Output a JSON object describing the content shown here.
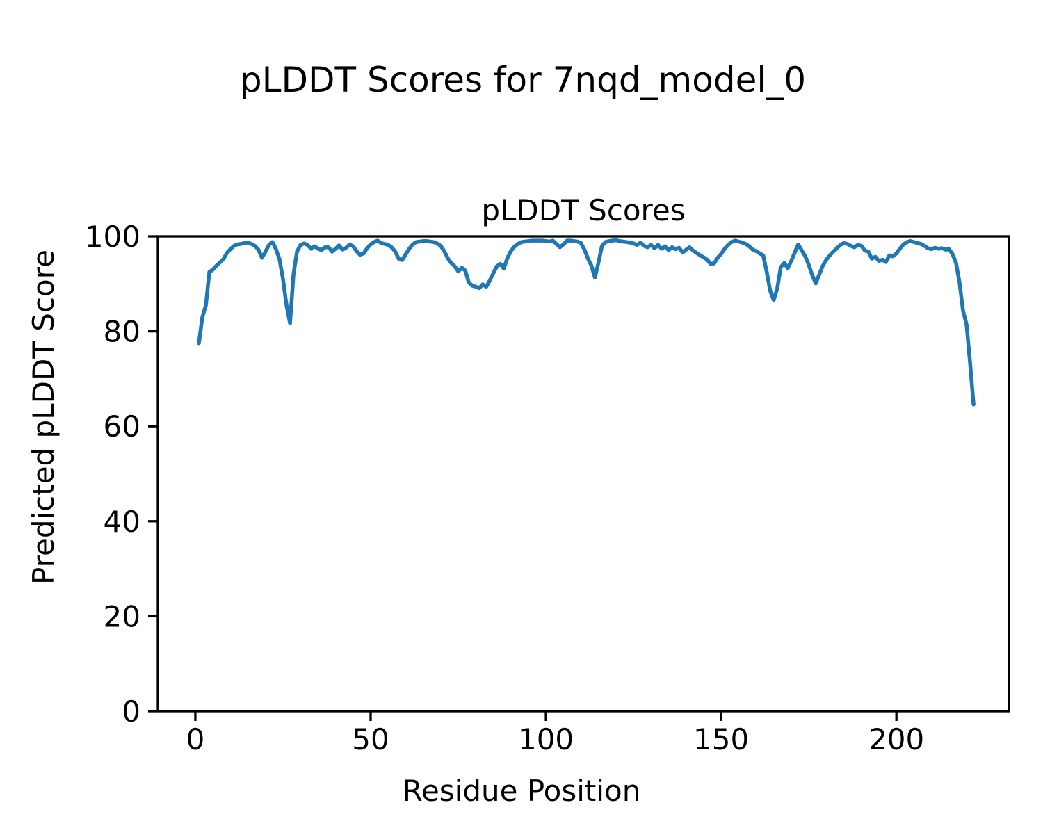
{
  "chart_data": {
    "type": "line",
    "figure_title": "pLDDT Scores for 7nqd_model_0",
    "axes_title": "pLDDT Scores",
    "xlabel": "Residue Position",
    "ylabel": "Predicted pLDDT Score",
    "xlim": [
      -10.7,
      232.1
    ],
    "ylim": [
      0,
      100
    ],
    "xticks": [
      0,
      50,
      100,
      150,
      200
    ],
    "yticks": [
      0,
      20,
      40,
      60,
      80,
      100
    ],
    "grid": false,
    "legend": "none",
    "line_color": "#1f77b4",
    "axes_edge_color": "#000000",
    "background_color": "#ffffff",
    "series": [
      {
        "name": "pLDDT",
        "x": [
          1,
          2,
          3,
          4,
          5,
          6,
          7,
          8,
          9,
          10,
          11,
          12,
          13,
          14,
          15,
          16,
          17,
          18,
          19,
          20,
          21,
          22,
          23,
          24,
          25,
          26,
          27,
          28,
          29,
          30,
          31,
          32,
          33,
          34,
          35,
          36,
          37,
          38,
          39,
          40,
          41,
          42,
          43,
          44,
          45,
          46,
          47,
          48,
          49,
          50,
          51,
          52,
          53,
          54,
          55,
          56,
          57,
          58,
          59,
          60,
          61,
          62,
          63,
          64,
          65,
          66,
          67,
          68,
          69,
          70,
          71,
          72,
          73,
          74,
          75,
          76,
          77,
          78,
          79,
          80,
          81,
          82,
          83,
          84,
          85,
          86,
          87,
          88,
          89,
          90,
          91,
          92,
          93,
          94,
          95,
          96,
          97,
          98,
          99,
          100,
          101,
          102,
          103,
          104,
          105,
          106,
          107,
          108,
          109,
          110,
          111,
          112,
          113,
          114,
          115,
          116,
          117,
          118,
          119,
          120,
          121,
          122,
          123,
          124,
          125,
          126,
          127,
          128,
          129,
          130,
          131,
          132,
          133,
          134,
          135,
          136,
          137,
          138,
          139,
          140,
          141,
          142,
          143,
          144,
          145,
          146,
          147,
          148,
          149,
          150,
          151,
          152,
          153,
          154,
          155,
          156,
          157,
          158,
          159,
          160,
          161,
          162,
          163,
          164,
          165,
          166,
          167,
          168,
          169,
          170,
          171,
          172,
          173,
          174,
          175,
          176,
          177,
          178,
          179,
          180,
          181,
          182,
          183,
          184,
          185,
          186,
          187,
          188,
          189,
          190,
          191,
          192,
          193,
          194,
          195,
          196,
          197,
          198,
          199,
          200,
          201,
          202,
          203,
          204,
          205,
          206,
          207,
          208,
          209,
          210,
          211,
          212,
          213,
          214,
          215,
          216,
          217,
          218,
          219,
          220,
          221,
          222
        ],
        "y": [
          77.5,
          83.0,
          85.5,
          92.5,
          93.0,
          93.8,
          94.5,
          95.2,
          96.5,
          97.3,
          98.0,
          98.3,
          98.4,
          98.6,
          98.7,
          98.4,
          98.0,
          97.2,
          95.5,
          96.8,
          98.2,
          98.8,
          97.3,
          95.2,
          91.0,
          85.5,
          81.7,
          92.0,
          96.8,
          98.2,
          98.5,
          98.2,
          97.4,
          97.9,
          97.4,
          97.1,
          97.7,
          97.7,
          96.8,
          97.4,
          98.1,
          97.2,
          97.6,
          98.3,
          97.9,
          96.9,
          96.1,
          96.4,
          97.5,
          98.3,
          98.8,
          99.1,
          98.6,
          98.4,
          98.2,
          97.7,
          96.8,
          95.3,
          95.0,
          96.2,
          97.4,
          98.3,
          98.8,
          98.9,
          99.0,
          99.0,
          98.9,
          98.8,
          98.5,
          98.0,
          96.9,
          95.4,
          94.4,
          93.7,
          92.6,
          93.4,
          92.8,
          90.3,
          89.6,
          89.4,
          89.1,
          89.9,
          89.4,
          90.7,
          92.2,
          93.7,
          94.2,
          93.2,
          95.4,
          96.9,
          97.8,
          98.4,
          98.8,
          98.9,
          99.0,
          99.1,
          99.1,
          99.1,
          99.1,
          99.0,
          98.9,
          99.1,
          98.4,
          97.7,
          98.3,
          99.1,
          99.1,
          99.0,
          98.9,
          98.6,
          97.2,
          95.3,
          93.8,
          91.3,
          94.5,
          98.0,
          98.8,
          99.0,
          99.1,
          99.2,
          99.0,
          98.9,
          98.8,
          98.7,
          98.5,
          98.2,
          98.7,
          98.0,
          97.7,
          98.2,
          97.5,
          98.2,
          97.4,
          97.9,
          97.1,
          97.7,
          97.3,
          97.6,
          96.6,
          97.2,
          97.7,
          97.0,
          96.5,
          96.0,
          95.6,
          95.1,
          94.2,
          94.3,
          95.5,
          96.3,
          97.4,
          98.2,
          98.8,
          99.1,
          98.9,
          98.7,
          98.4,
          97.9,
          97.2,
          96.9,
          96.4,
          96.0,
          92.5,
          88.5,
          86.6,
          89.0,
          93.5,
          94.4,
          93.3,
          94.8,
          96.6,
          98.3,
          97.0,
          95.8,
          94.0,
          91.8,
          90.1,
          92.0,
          93.8,
          95.1,
          96.0,
          96.8,
          97.5,
          98.2,
          98.6,
          98.4,
          98.0,
          97.7,
          98.2,
          98.0,
          97.0,
          96.8,
          95.3,
          95.7,
          94.8,
          95.1,
          94.6,
          96.0,
          95.8,
          96.4,
          97.4,
          98.3,
          98.8,
          99.0,
          98.8,
          98.6,
          98.4,
          98.0,
          97.5,
          97.3,
          97.6,
          97.4,
          97.5,
          97.2,
          97.3,
          96.3,
          94.4,
          90.3,
          84.3,
          81.5,
          73.5,
          64.6
        ]
      }
    ]
  }
}
